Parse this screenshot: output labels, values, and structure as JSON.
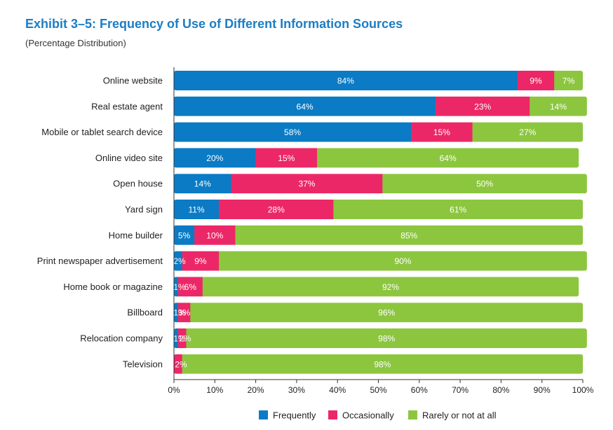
{
  "title": "Exhibit 3–5:  Frequency of Use of Different Information Sources",
  "subtitle": "(Percentage Distribution)",
  "colors": {
    "frequently": "#0a7bc4",
    "occasionally": "#ec2767",
    "rarely": "#8cc63f",
    "title": "#1b7ec4"
  },
  "chart_data": {
    "type": "bar",
    "orientation": "horizontal",
    "stacked": true,
    "categories": [
      "Online website",
      "Real estate agent",
      "Mobile or tablet search device",
      "Online video site",
      "Open house",
      "Yard sign",
      "Home builder",
      "Print newspaper advertisement",
      "Home book or magazine",
      "Billboard",
      "Relocation company",
      "Television"
    ],
    "series": [
      {
        "name": "Frequently",
        "values": [
          84,
          64,
          58,
          20,
          14,
          11,
          5,
          2,
          1,
          1,
          1,
          0
        ],
        "labels": [
          "84%",
          "64%",
          "58%",
          "20%",
          "14%",
          "11%",
          "5%",
          "2%",
          "1%",
          "1%",
          "1%",
          ""
        ]
      },
      {
        "name": "Occasionally",
        "values": [
          9,
          23,
          15,
          15,
          37,
          28,
          10,
          9,
          6,
          3,
          2,
          2
        ],
        "labels": [
          "9%",
          "23%",
          "15%",
          "15%",
          "37%",
          "28%",
          "10%",
          "9%",
          "6%",
          "3%",
          "2%",
          "2%"
        ]
      },
      {
        "name": "Rarely or not at all",
        "values": [
          7,
          14,
          27,
          64,
          50,
          61,
          85,
          90,
          92,
          96,
          98,
          98
        ],
        "labels": [
          "7%",
          "14%",
          "27%",
          "64%",
          "50%",
          "61%",
          "85%",
          "90%",
          "92%",
          "96%",
          "98%",
          "98%"
        ]
      }
    ],
    "xlim": [
      0,
      100
    ],
    "xticks": [
      "0%",
      "10%",
      "20%",
      "30%",
      "40%",
      "50%",
      "60%",
      "70%",
      "80%",
      "90%",
      "100%"
    ],
    "legend": "bottom-center",
    "grid": false
  }
}
